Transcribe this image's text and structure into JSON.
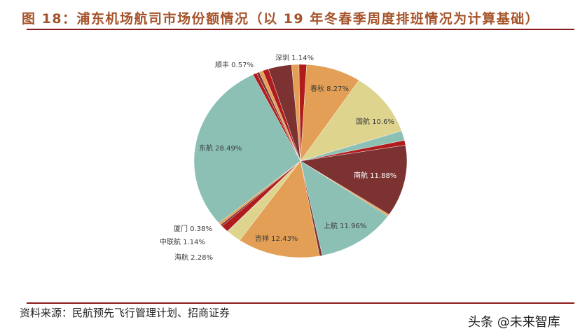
{
  "header": {
    "title": "图 18：浦东机场航司市场份额情况（以 19 年冬春季周度排班情况为计算基础）"
  },
  "footer": {
    "source": "资料来源：民航预先飞行管理计划、招商证券",
    "watermark": "头条 @未来智库"
  },
  "labels": {
    "shenzhen": "深圳 1.14%",
    "shunfeng": "顺丰 0.57%",
    "chunqiu": "春秋 8.27%",
    "guohang": "国航 10.6%",
    "nanhang": "南航 11.88%",
    "shanghang": "上航 11.96%",
    "jixiang": "吉祥 12.43%",
    "haihang": "海航 2.28%",
    "zhonglianhang": "中联航 1.14%",
    "xiamen": "厦门 0.38%",
    "donghang": "东航 28.49%"
  },
  "colors": {
    "red": "#b01c1c",
    "orange": "#e39f55",
    "yellow": "#dfd48e",
    "teal": "#8cc0b5",
    "brown": "#7d3232",
    "title": "#a5532a",
    "rule": "#8b1a1a"
  },
  "chart_data": {
    "type": "pie",
    "title": "浦东机场航司市场份额情况（以 19 年冬春季周度排班情况为计算基础）",
    "start_angle": "12 o'clock, clockwise",
    "slices": [
      {
        "name": "深圳",
        "value": 1.14,
        "color": "#b01c1c",
        "labeled": true
      },
      {
        "name": "春秋",
        "value": 8.27,
        "color": "#e39f55",
        "labeled": true
      },
      {
        "name": "国航",
        "value": 10.6,
        "color": "#dfd48e",
        "labeled": true
      },
      {
        "name": "unlabeled-teal-1",
        "value": 1.6,
        "color": "#8cc0b5",
        "labeled": false
      },
      {
        "name": "unlabeled-red-1",
        "value": 0.8,
        "color": "#b01c1c",
        "labeled": false
      },
      {
        "name": "南航",
        "value": 11.88,
        "color": "#7d3232",
        "labeled": true
      },
      {
        "name": "unlabeled-tan-1",
        "value": 0.3,
        "color": "#e39f55",
        "labeled": false
      },
      {
        "name": "上航",
        "value": 11.96,
        "color": "#8cc0b5",
        "labeled": true
      },
      {
        "name": "unlabeled-red-2",
        "value": 0.4,
        "color": "#7d3232",
        "labeled": false
      },
      {
        "name": "吉祥",
        "value": 12.43,
        "color": "#e39f55",
        "labeled": true
      },
      {
        "name": "海航",
        "value": 2.28,
        "color": "#dfd48e",
        "labeled": true
      },
      {
        "name": "unlabeled-teal-2",
        "value": 0.1,
        "color": "#8cc0b5",
        "labeled": false
      },
      {
        "name": "中联航",
        "value": 1.14,
        "color": "#b01c1c",
        "labeled": true
      },
      {
        "name": "unlabeled-brown-1",
        "value": 0.3,
        "color": "#7d3232",
        "labeled": false
      },
      {
        "name": "厦门",
        "value": 0.38,
        "color": "#e39f55",
        "labeled": true
      },
      {
        "name": "东航",
        "value": 28.49,
        "color": "#8cc0b5",
        "labeled": true
      },
      {
        "name": "unlabeled-red-3",
        "value": 0.6,
        "color": "#b01c1c",
        "labeled": false
      },
      {
        "name": "unlabeled-brown-2",
        "value": 0.4,
        "color": "#7d3232",
        "labeled": false
      },
      {
        "name": "顺丰",
        "value": 0.57,
        "color": "#e39f55",
        "labeled": true
      },
      {
        "name": "unlabeled-red-4",
        "value": 0.9,
        "color": "#b01c1c",
        "labeled": false
      },
      {
        "name": "unlabeled-brown-3",
        "value": 3.5,
        "color": "#7d3232",
        "labeled": false
      },
      {
        "name": "unlabeled-tan-2",
        "value": 1.1,
        "color": "#e39f55",
        "labeled": false
      }
    ]
  }
}
